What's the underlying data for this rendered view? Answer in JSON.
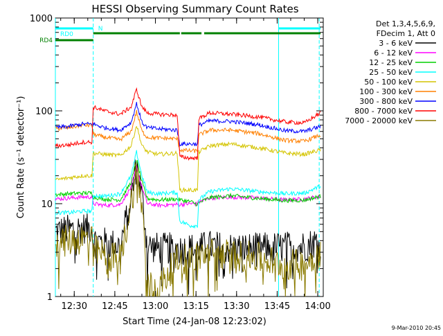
{
  "chart_data": {
    "type": "line",
    "title": "HESSI Observing Summary Count Rates",
    "xlabel": "Start Time (24-Jan-08 12:23:02)",
    "ylabel": "Count Rate (s⁻¹ detector⁻¹)",
    "y_scale": "log",
    "ylim": [
      1,
      1000
    ],
    "xlim_minutes": [
      0,
      99
    ],
    "x_tick_labels": [
      "12:30",
      "12:45",
      "13:00",
      "13:15",
      "13:30",
      "13:45",
      "14:00"
    ],
    "x_tick_minutes": [
      6.97,
      21.97,
      36.97,
      51.97,
      66.97,
      81.97,
      96.97
    ],
    "y_tick_labels": [
      "1",
      "10",
      "100",
      "1000"
    ],
    "y_tick_values": [
      1,
      10,
      100,
      1000
    ],
    "legend": {
      "header": [
        "Det 1,3,4,5,6,9,",
        "FDecim 1, Att 0"
      ],
      "placement": "right"
    },
    "timestamp": "9-Mar-2010 20:45",
    "x": [
      0,
      5,
      10,
      13.5,
      14,
      18,
      24,
      28,
      30,
      32,
      34,
      38,
      45,
      46,
      50,
      52.5,
      53,
      57,
      65,
      75,
      85,
      92,
      98
    ],
    "series": [
      {
        "name": "3 - 6 keV",
        "color": "#000000",
        "values": [
          5.0,
          5.2,
          5.5,
          5.5,
          4.0,
          3.8,
          3.5,
          12,
          26,
          12,
          3.5,
          3.3,
          3.3,
          3.2,
          3.3,
          3.2,
          3.3,
          3.5,
          3.3,
          3.3,
          3.4,
          3.5,
          4.0
        ]
      },
      {
        "name": "6 - 12 keV",
        "color": "#ff00ff",
        "values": [
          11.2,
          11.5,
          11.8,
          11.8,
          10.0,
          9.6,
          9.8,
          15,
          25,
          15,
          10.0,
          9.6,
          9.8,
          9.8,
          10.0,
          10.0,
          10.4,
          11.5,
          11.8,
          11.5,
          11.0,
          11.2,
          12.0
        ]
      },
      {
        "name": "12 - 25 keV",
        "color": "#00d000",
        "values": [
          12.5,
          12.8,
          13.0,
          13.0,
          11.8,
          11.2,
          11.0,
          17,
          30,
          17,
          11.4,
          11.0,
          11.2,
          11.0,
          10.5,
          9.8,
          10.2,
          11.6,
          12.2,
          11.4,
          10.8,
          10.9,
          12.0
        ]
      },
      {
        "name": "25 - 50 keV",
        "color": "#00ffff",
        "values": [
          8.0,
          8.0,
          8.3,
          8.3,
          12.3,
          12.0,
          12.8,
          20,
          36,
          20,
          13.2,
          12.8,
          13.2,
          6.5,
          5.8,
          5.8,
          11.0,
          13.5,
          14.5,
          13.5,
          12.8,
          13.0,
          15.5
        ]
      },
      {
        "name": "50 - 100 keV",
        "color": "#d4c400",
        "values": [
          18,
          19,
          20,
          20,
          35,
          34,
          33,
          42,
          70,
          42,
          36,
          34,
          35,
          14,
          14,
          14,
          36,
          42,
          44,
          40,
          35,
          34,
          38
        ]
      },
      {
        "name": "100 - 300 keV",
        "color": "#ff8000",
        "values": [
          64,
          66,
          70,
          70,
          56,
          52,
          49,
          60,
          98,
          60,
          52,
          51,
          50,
          38,
          37,
          37,
          55,
          62,
          62,
          57,
          48,
          47,
          55
        ]
      },
      {
        "name": "300 - 800 keV",
        "color": "#0000ff",
        "values": [
          66,
          68,
          72,
          72,
          72,
          66,
          62,
          75,
          120,
          75,
          66,
          64,
          62,
          44,
          44,
          44,
          70,
          78,
          77,
          71,
          61,
          60,
          68
        ]
      },
      {
        "name": "800 - 7000 keV",
        "color": "#ff0000",
        "values": [
          42,
          43,
          46,
          46,
          110,
          100,
          92,
          110,
          170,
          110,
          95,
          92,
          90,
          32,
          31,
          31,
          82,
          95,
          92,
          86,
          76,
          74,
          95
        ]
      },
      {
        "name": "7000 - 20000 keV",
        "color": "#8a7a00",
        "values": [
          3.8,
          4.0,
          4.2,
          4.2,
          3.2,
          2.8,
          2.5,
          10,
          22,
          10,
          1.3,
          1.2,
          2.5,
          2.5,
          2.6,
          2.6,
          2.8,
          2.9,
          2.8,
          2.6,
          2.2,
          2.2,
          3.0
        ]
      }
    ],
    "status_bars": [
      {
        "name": "RD0",
        "color": "#00ffff",
        "segments": [
          [
            0,
            14
          ],
          [
            82.5,
            98
          ]
        ]
      },
      {
        "name": "RD4",
        "color": "#008000",
        "segments": [
          [
            0,
            14
          ],
          [
            14,
            46
          ],
          [
            46.5,
            54
          ],
          [
            55,
            98
          ]
        ]
      }
    ],
    "markers": [
      {
        "label": "N",
        "color": "#00ffff",
        "x": 14
      }
    ],
    "vertical_lines": [
      {
        "x": 0,
        "color": "#00ffff",
        "style": "solid"
      },
      {
        "x": 14,
        "color": "#00ffff",
        "style": "dashed"
      },
      {
        "x": 82.5,
        "color": "#00ffff",
        "style": "solid"
      },
      {
        "x": 97.5,
        "color": "#00ffff",
        "style": "dashed"
      }
    ]
  }
}
